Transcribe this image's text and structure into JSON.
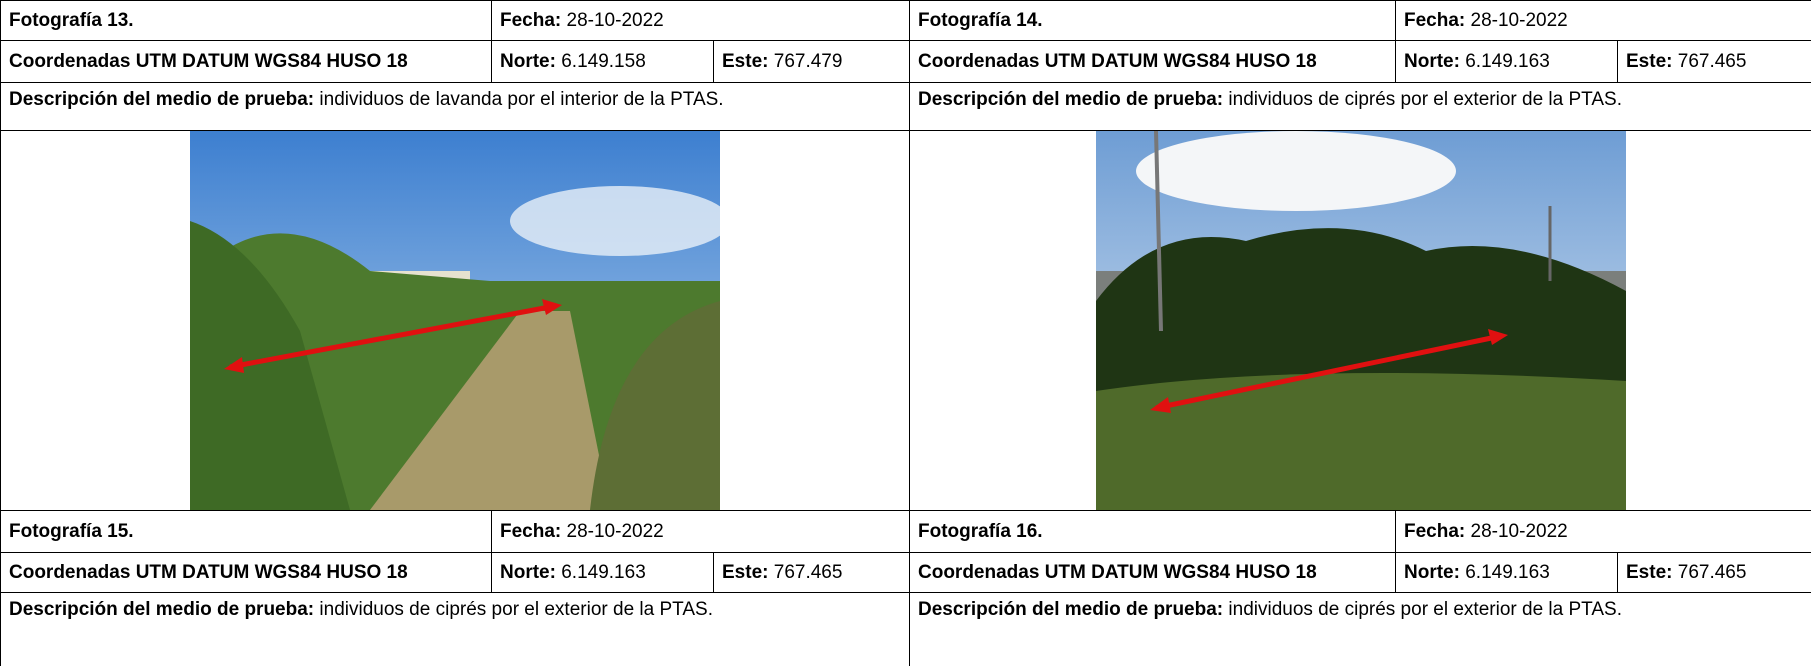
{
  "columns": [
    {
      "blocks": [
        {
          "title": "Fotografía 13.",
          "date_label": "Fecha:",
          "date": "28-10-2022",
          "coords": "Coordenadas UTM DATUM WGS84 HUSO 18",
          "north_label": "Norte:",
          "north": "6.149.158",
          "east_label": "Este:",
          "east": "767.479",
          "desc_label": "Descripción del medio de prueba:",
          "desc": "individuos de lavanda por el interior de la PTAS."
        },
        {
          "title": "Fotografía 15.",
          "date_label": "Fecha:",
          "date": "28-10-2022",
          "coords": "Coordenadas UTM DATUM WGS84 HUSO 18",
          "north_label": "Norte:",
          "north": "6.149.163",
          "east_label": "Este:",
          "east": "767.465",
          "desc_label": "Descripción del medio de prueba:",
          "desc": "individuos de ciprés por el exterior de la PTAS."
        }
      ]
    },
    {
      "blocks": [
        {
          "title": "Fotografía 14.",
          "date_label": "Fecha:",
          "date": "28-10-2022",
          "coords": "Coordenadas UTM DATUM WGS84 HUSO 18",
          "north_label": "Norte:",
          "north": "6.149.163",
          "east_label": "Este:",
          "east": "767.465",
          "desc_label": "Descripción del medio de prueba:",
          "desc": "individuos de ciprés por el exterior de la PTAS."
        },
        {
          "title": "Fotografía 16.",
          "date_label": "Fecha:",
          "date": "28-10-2022",
          "coords": "Coordenadas UTM DATUM WGS84 HUSO 18",
          "north_label": "Norte:",
          "north": "6.149.163",
          "east_label": "Este:",
          "east": "767.465",
          "desc_label": "Descripción del medio de prueba:",
          "desc": "individuos de ciprés por el exterior de la PTAS."
        }
      ]
    }
  ]
}
